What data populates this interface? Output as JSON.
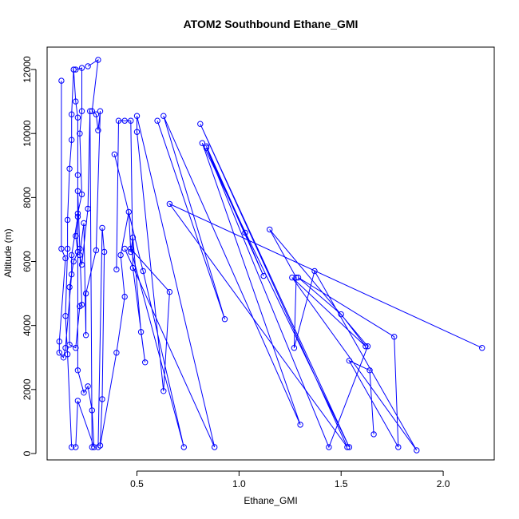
{
  "chart_data": {
    "type": "line",
    "title": "ATOM2 Southbound Ethane_GMI",
    "xlabel": "Ethane_GMI",
    "ylabel": "Altitude (m)",
    "xlim": [
      0.06,
      2.25
    ],
    "ylim": [
      -200,
      12700
    ],
    "x_ticks": [
      0.5,
      1.0,
      1.5,
      2.0
    ],
    "x_tick_labels": [
      "0.5",
      "1.0",
      "1.5",
      "2.0"
    ],
    "y_ticks": [
      0,
      2000,
      4000,
      6000,
      8000,
      10000,
      12000
    ],
    "y_tick_labels": [
      "0",
      "2000",
      "4000",
      "6000",
      "8000",
      "10000",
      "12000"
    ],
    "series": [
      {
        "x": [
          0.13,
          0.13,
          0.15,
          0.12,
          0.12,
          0.14,
          0.15,
          0.18,
          0.18,
          0.21,
          0.21,
          0.21,
          0.2,
          0.19,
          0.18,
          0.18,
          0.17,
          0.16,
          0.16,
          0.15,
          0.16,
          0.18
        ],
        "y": [
          11650,
          6400,
          6100,
          3500,
          3150,
          3000,
          3300,
          5600,
          6200,
          7400,
          8700,
          10500,
          11000,
          12000,
          10600,
          9800,
          8900,
          7300,
          6400,
          4300,
          3100,
          200
        ]
      },
      {
        "x": [
          0.2,
          0.23,
          0.23,
          0.22,
          0.23,
          0.21,
          0.2,
          0.21,
          0.19,
          0.17,
          0.17,
          0.2,
          0.22,
          0.23,
          0.22,
          0.21,
          0.21,
          0.24,
          0.26,
          0.28,
          0.29,
          0.21,
          0.2
        ],
        "y": [
          12000,
          12050,
          10700,
          10000,
          8100,
          7500,
          6800,
          6300,
          6000,
          5200,
          3400,
          3300,
          4600,
          4650,
          6400,
          8200,
          2600,
          1900,
          2100,
          1350,
          200,
          1650,
          200
        ]
      },
      {
        "x": [
          0.26,
          0.31,
          0.28,
          0.3,
          0.31,
          0.32,
          0.3,
          0.25,
          0.25,
          0.24,
          0.22,
          0.23,
          0.26,
          0.27,
          0.28
        ],
        "y": [
          12100,
          12300,
          10700,
          10600,
          10100,
          10700,
          6350,
          5000,
          3700,
          7200,
          6200,
          5900,
          7650,
          10700,
          200
        ]
      },
      {
        "x": [
          0.31,
          0.33,
          0.34,
          0.33,
          0.32,
          0.4,
          0.44,
          0.42,
          0.46,
          0.47,
          0.48,
          0.52,
          0.54,
          0.48,
          0.47,
          0.44,
          0.41,
          0.4
        ],
        "y": [
          200,
          7050,
          6300,
          1700,
          250,
          3150,
          4900,
          6200,
          7550,
          6300,
          6750,
          3800,
          2850,
          5800,
          10400,
          10400,
          10400,
          5750
        ]
      },
      {
        "x": [
          0.39,
          0.53,
          0.73,
          0.47,
          0.66,
          0.63,
          0.5,
          0.5,
          0.88,
          0.44
        ],
        "y": [
          9350,
          5700,
          200,
          6400,
          5050,
          1950,
          10050,
          10550,
          200,
          6400
        ]
      },
      {
        "x": [
          0.6,
          0.93,
          0.63,
          1.3,
          0.82,
          1.54,
          0.81,
          1.53,
          0.66,
          2.19
        ],
        "y": [
          10400,
          4200,
          10550,
          900,
          9700,
          200,
          10300,
          200,
          7800,
          3300
        ]
      },
      {
        "x": [
          0.84,
          1.03,
          1.12,
          0.84,
          1.44,
          1.63,
          1.15,
          1.28,
          1.27,
          1.37,
          1.87,
          1.26,
          1.62,
          1.5,
          1.29,
          1.76,
          1.78,
          1.54,
          1.64,
          1.66
        ],
        "y": [
          9600,
          6900,
          5550,
          9550,
          200,
          3350,
          7000,
          5500,
          3300,
          5700,
          100,
          5500,
          3350,
          4350,
          5500,
          3650,
          200,
          2900,
          2600,
          600
        ]
      }
    ]
  }
}
